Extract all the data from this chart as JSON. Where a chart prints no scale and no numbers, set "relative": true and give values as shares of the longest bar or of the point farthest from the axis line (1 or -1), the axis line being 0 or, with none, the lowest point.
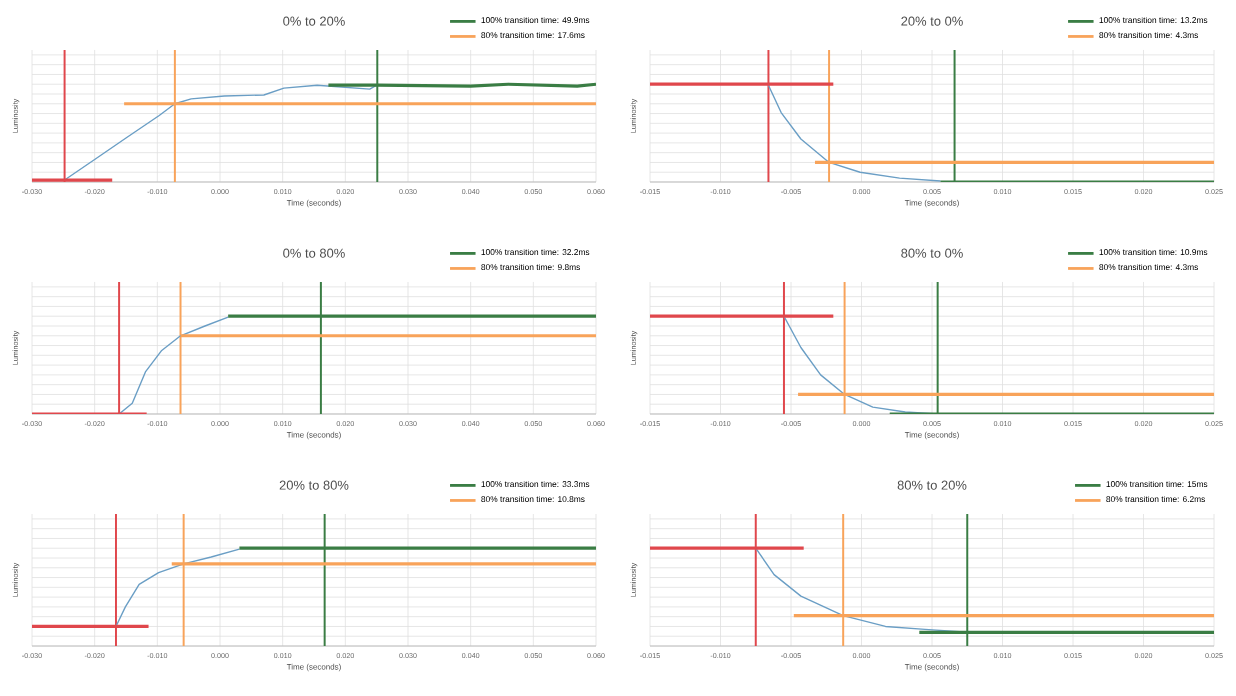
{
  "chart_data": [
    {
      "type": "line",
      "title": "0% to 20%",
      "xlabel": "Time (seconds)",
      "ylabel": "Luminosity",
      "relative": true,
      "grid": true,
      "legend": "top right",
      "xlim": [
        -0.03,
        0.06
      ],
      "xticks": [
        {
          "value": -0.03,
          "label": "-0.030"
        },
        {
          "value": -0.02,
          "label": "-0.020"
        },
        {
          "value": -0.01,
          "label": "-0.010"
        },
        {
          "value": 0,
          "label": "0.000"
        },
        {
          "value": 0.01,
          "label": "0.010"
        },
        {
          "value": 0.02,
          "label": "0.020"
        },
        {
          "value": 0.03,
          "label": "0.030"
        },
        {
          "value": 0.04,
          "label": "0.040"
        },
        {
          "value": 0.05,
          "label": "0.050"
        },
        {
          "value": 0.06,
          "label": "0.060"
        }
      ],
      "series": [
        {
          "color": "#6a9ec5",
          "x": [
            -0.0248,
            -0.02,
            -0.015,
            -0.0097,
            -0.0072,
            -0.0046,
            0.0007,
            0.007,
            0.0102,
            0.0155,
            0.0239,
            0.0253
          ],
          "values": [
            0.02,
            0.23,
            0.45,
            0.68,
            0.8,
            0.85,
            0.88,
            0.89,
            0.96,
            0.99,
            0.95,
            1.0
          ]
        },
        {
          "color": "#e0474c",
          "x": [
            -0.03,
            -0.0172
          ],
          "values": [
            0.02,
            0.02
          ]
        },
        {
          "name": "100% transition time: 49.9ms",
          "color": "#3a7d44",
          "x": [
            0.0173,
            0.025,
            0.04,
            0.046,
            0.057,
            0.06
          ],
          "values": [
            0.99,
            0.99,
            0.98,
            1.0,
            0.98,
            1.0
          ]
        },
        {
          "name": "80% transition time: 17.6ms",
          "color": "#f8a35a",
          "x": [
            -0.0153,
            0.06
          ],
          "values": [
            0.8,
            0.8
          ]
        }
      ],
      "ref_lines": [
        {
          "axis": "x",
          "value": -0.0248,
          "color": "#e0474c"
        },
        {
          "axis": "x",
          "value": -0.0072,
          "color": "#f8a35a"
        },
        {
          "axis": "x",
          "value": 0.0251,
          "color": "#3a7d44"
        }
      ]
    },
    {
      "type": "line",
      "title": "20% to 0%",
      "xlabel": "Time (seconds)",
      "ylabel": "Luminosity",
      "relative": true,
      "grid": true,
      "legend": "top right",
      "xlim": [
        -0.015,
        0.025
      ],
      "xticks": [
        {
          "value": -0.015,
          "label": "-0.015"
        },
        {
          "value": -0.01,
          "label": "-0.010"
        },
        {
          "value": -0.005,
          "label": "-0.005"
        },
        {
          "value": 0,
          "label": "0.000"
        },
        {
          "value": 0.005,
          "label": "0.005"
        },
        {
          "value": 0.01,
          "label": "0.010"
        },
        {
          "value": 0.015,
          "label": "0.015"
        },
        {
          "value": 0.02,
          "label": "0.020"
        },
        {
          "value": 0.025,
          "label": "0.025"
        }
      ],
      "series": [
        {
          "color": "#6a9ec5",
          "x": [
            -0.0066,
            -0.0057,
            -0.0043,
            -0.0023,
            -0.0001,
            0.0027,
            0.0056
          ],
          "values": [
            0.99,
            0.71,
            0.44,
            0.2,
            0.1,
            0.04,
            0.01
          ]
        },
        {
          "color": "#e0474c",
          "x": [
            -0.015,
            -0.002
          ],
          "values": [
            1.0,
            1.0
          ]
        },
        {
          "name": "100% transition time: 13.2ms",
          "color": "#3a7d44",
          "x": [
            0.0056,
            0.025
          ],
          "values": [
            0,
            0
          ]
        },
        {
          "name": "80% transition time: 4.3ms",
          "color": "#f8a35a",
          "x": [
            -0.0033,
            0.025
          ],
          "values": [
            0.2,
            0.2
          ]
        }
      ],
      "ref_lines": [
        {
          "axis": "x",
          "value": -0.0066,
          "color": "#e0474c"
        },
        {
          "axis": "x",
          "value": -0.0023,
          "color": "#f8a35a"
        },
        {
          "axis": "x",
          "value": 0.0066,
          "color": "#3a7d44"
        }
      ]
    },
    {
      "type": "line",
      "title": "0% to 80%",
      "xlabel": "Time (seconds)",
      "ylabel": "Luminosity",
      "relative": true,
      "grid": true,
      "legend": "top right",
      "xlim": [
        -0.03,
        0.06
      ],
      "xticks": [
        {
          "value": -0.03,
          "label": "-0.030"
        },
        {
          "value": -0.02,
          "label": "-0.020"
        },
        {
          "value": -0.01,
          "label": "-0.010"
        },
        {
          "value": 0,
          "label": "0.000"
        },
        {
          "value": 0.01,
          "label": "0.010"
        },
        {
          "value": 0.02,
          "label": "0.020"
        },
        {
          "value": 0.03,
          "label": "0.030"
        },
        {
          "value": 0.04,
          "label": "0.040"
        },
        {
          "value": 0.05,
          "label": "0.050"
        },
        {
          "value": 0.06,
          "label": "0.060"
        }
      ],
      "series": [
        {
          "color": "#6a9ec5",
          "x": [
            -0.0161,
            -0.014,
            -0.0119,
            -0.0093,
            -0.0063,
            -0.0024,
            0.0013
          ],
          "values": [
            0,
            0.11,
            0.43,
            0.65,
            0.8,
            0.9,
            0.99
          ]
        },
        {
          "color": "#e0474c",
          "x": [
            -0.03,
            -0.0117
          ],
          "values": [
            0,
            0
          ]
        },
        {
          "name": "100% transition time: 32.2ms",
          "color": "#3a7d44",
          "x": [
            0.0013,
            0.06
          ],
          "values": [
            1.0,
            1.0
          ]
        },
        {
          "name": "80% transition time: 9.8ms",
          "color": "#f8a35a",
          "x": [
            -0.0063,
            0.06
          ],
          "values": [
            0.8,
            0.8
          ]
        }
      ],
      "ref_lines": [
        {
          "axis": "x",
          "value": -0.0161,
          "color": "#e0474c"
        },
        {
          "axis": "x",
          "value": -0.0063,
          "color": "#f8a35a"
        },
        {
          "axis": "x",
          "value": 0.0161,
          "color": "#3a7d44"
        }
      ]
    },
    {
      "type": "line",
      "title": "80% to 0%",
      "xlabel": "Time (seconds)",
      "ylabel": "Luminosity",
      "relative": true,
      "grid": true,
      "legend": "top right",
      "xlim": [
        -0.015,
        0.025
      ],
      "xticks": [
        {
          "value": -0.015,
          "label": "-0.015"
        },
        {
          "value": -0.01,
          "label": "-0.010"
        },
        {
          "value": -0.005,
          "label": "-0.005"
        },
        {
          "value": 0,
          "label": "0.000"
        },
        {
          "value": 0.005,
          "label": "0.005"
        },
        {
          "value": 0.01,
          "label": "0.010"
        },
        {
          "value": 0.015,
          "label": "0.015"
        },
        {
          "value": 0.02,
          "label": "0.020"
        },
        {
          "value": 0.025,
          "label": "0.025"
        }
      ],
      "series": [
        {
          "color": "#6a9ec5",
          "x": [
            -0.0055,
            -0.0043,
            -0.0029,
            -0.0012,
            0.0008,
            0.0031,
            0.0054
          ],
          "values": [
            1.0,
            0.68,
            0.4,
            0.2,
            0.07,
            0.02,
            0
          ]
        },
        {
          "color": "#e0474c",
          "x": [
            -0.015,
            -0.002
          ],
          "values": [
            1.0,
            1.0
          ]
        },
        {
          "name": "100% transition time: 10.9ms",
          "color": "#3a7d44",
          "x": [
            0.002,
            0.025
          ],
          "values": [
            0,
            0
          ]
        },
        {
          "name": "80% transition time: 4.3ms",
          "color": "#f8a35a",
          "x": [
            -0.0045,
            0.025
          ],
          "values": [
            0.2,
            0.2
          ]
        }
      ],
      "ref_lines": [
        {
          "axis": "x",
          "value": -0.0055,
          "color": "#e0474c"
        },
        {
          "axis": "x",
          "value": -0.0012,
          "color": "#f8a35a"
        },
        {
          "axis": "x",
          "value": 0.0054,
          "color": "#3a7d44"
        }
      ]
    },
    {
      "type": "line",
      "title": "20% to 80%",
      "xlabel": "Time (seconds)",
      "ylabel": "Luminosity",
      "relative": true,
      "grid": true,
      "legend": "top right",
      "xlim": [
        -0.03,
        0.06
      ],
      "xticks": [
        {
          "value": -0.03,
          "label": "-0.030"
        },
        {
          "value": -0.02,
          "label": "-0.020"
        },
        {
          "value": -0.01,
          "label": "-0.010"
        },
        {
          "value": 0,
          "label": "0.000"
        },
        {
          "value": 0.01,
          "label": "0.010"
        },
        {
          "value": 0.02,
          "label": "0.020"
        },
        {
          "value": 0.03,
          "label": "0.030"
        },
        {
          "value": 0.04,
          "label": "0.040"
        },
        {
          "value": 0.05,
          "label": "0.050"
        },
        {
          "value": 0.06,
          "label": "0.060"
        }
      ],
      "series": [
        {
          "color": "#6a9ec5",
          "x": [
            -0.0166,
            -0.0151,
            -0.0129,
            -0.0098,
            -0.0058,
            -0.0014,
            0.0031
          ],
          "values": [
            0.2,
            0.4,
            0.63,
            0.75,
            0.84,
            0.91,
            0.99
          ]
        },
        {
          "color": "#e0474c",
          "x": [
            -0.03,
            -0.0114
          ],
          "values": [
            0.2,
            0.2
          ]
        },
        {
          "name": "100% transition time: 33.3ms",
          "color": "#3a7d44",
          "x": [
            0.0031,
            0.06
          ],
          "values": [
            1.0,
            1.0
          ]
        },
        {
          "name": "80% transition time: 10.8ms",
          "color": "#f8a35a",
          "x": [
            -0.0077,
            0.06
          ],
          "values": [
            0.84,
            0.84
          ]
        }
      ],
      "ref_lines": [
        {
          "axis": "x",
          "value": -0.0166,
          "color": "#e0474c"
        },
        {
          "axis": "x",
          "value": -0.0058,
          "color": "#f8a35a"
        },
        {
          "axis": "x",
          "value": 0.0167,
          "color": "#3a7d44"
        }
      ]
    },
    {
      "type": "line",
      "title": "80% to 20%",
      "xlabel": "Time (seconds)",
      "ylabel": "Luminosity",
      "relative": true,
      "grid": true,
      "legend": "top right",
      "xlim": [
        -0.015,
        0.025
      ],
      "xticks": [
        {
          "value": -0.015,
          "label": "-0.015"
        },
        {
          "value": -0.01,
          "label": "-0.010"
        },
        {
          "value": -0.005,
          "label": "-0.005"
        },
        {
          "value": 0,
          "label": "0.000"
        },
        {
          "value": 0.005,
          "label": "0.005"
        },
        {
          "value": 0.01,
          "label": "0.010"
        },
        {
          "value": 0.015,
          "label": "0.015"
        },
        {
          "value": 0.02,
          "label": "0.020"
        },
        {
          "value": 0.025,
          "label": "0.025"
        }
      ],
      "series": [
        {
          "color": "#6a9ec5",
          "x": [
            -0.0075,
            -0.0062,
            -0.0043,
            -0.0013,
            0.0017,
            0.0045,
            0.0075
          ],
          "values": [
            1.0,
            0.73,
            0.51,
            0.31,
            0.2,
            0.17,
            0.14
          ]
        },
        {
          "color": "#e0474c",
          "x": [
            -0.015,
            -0.0041
          ],
          "values": [
            1.0,
            1.0
          ]
        },
        {
          "name": "100% transition time: 15ms",
          "color": "#3a7d44",
          "x": [
            0.0041,
            0.025
          ],
          "values": [
            0.14,
            0.14
          ]
        },
        {
          "name": "80% transition time: 6.2ms",
          "color": "#f8a35a",
          "x": [
            -0.0048,
            0.025
          ],
          "values": [
            0.31,
            0.31
          ]
        }
      ],
      "ref_lines": [
        {
          "axis": "x",
          "value": -0.0075,
          "color": "#e0474c"
        },
        {
          "axis": "x",
          "value": -0.0013,
          "color": "#f8a35a"
        },
        {
          "axis": "x",
          "value": 0.0075,
          "color": "#3a7d44"
        }
      ]
    }
  ]
}
